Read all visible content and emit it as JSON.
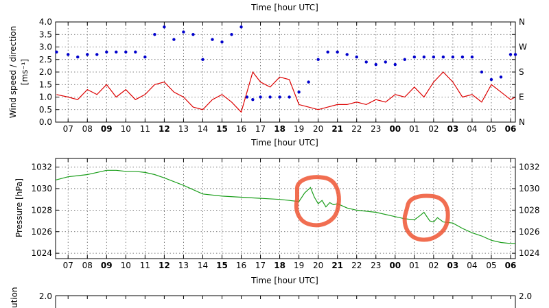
{
  "chart_data": [
    {
      "type": "line",
      "title": "",
      "xlabel_top": "Time [hour UTC]",
      "xlabel": "Time [hour UTC]",
      "ylabel": "Wind speed / direction [ms⁻¹]",
      "ylabel_line1": "Wind speed / direction",
      "ylabel_line2": "[ms⁻¹]",
      "ylim": [
        0.0,
        4.0
      ],
      "yticks": [
        "0.0",
        "0.5",
        "1.0",
        "1.5",
        "2.0",
        "2.5",
        "3.0",
        "3.5",
        "4.0"
      ],
      "y2ticks": [
        "N",
        "E",
        "S",
        "W",
        "N"
      ],
      "x_hour_start": 6.35,
      "x_hour_end": 30.25,
      "xticks": [
        "07",
        "08",
        "09",
        "10",
        "11",
        "12",
        "13",
        "14",
        "15",
        "16",
        "17",
        "18",
        "19",
        "20",
        "21",
        "22",
        "23",
        "00",
        "01",
        "02",
        "03",
        "04",
        "05",
        "06"
      ],
      "bold_xticks": [
        "09",
        "12",
        "15",
        "18",
        "21",
        "00",
        "03",
        "06"
      ],
      "series": [
        {
          "name": "Wind speed",
          "color": "#dd0000",
          "style": "line",
          "x": [
            6.4,
            7.0,
            7.5,
            8.0,
            8.5,
            9.0,
            9.5,
            10.0,
            10.5,
            11.0,
            11.5,
            12.0,
            12.5,
            13.0,
            13.5,
            14.0,
            14.5,
            15.0,
            15.5,
            16.0,
            16.3,
            16.6,
            17.0,
            17.5,
            18.0,
            18.5,
            19.0,
            19.5,
            20.0,
            20.5,
            21.0,
            21.5,
            22.0,
            22.5,
            23.0,
            23.5,
            24.0,
            24.5,
            25.0,
            25.5,
            26.0,
            26.5,
            27.0,
            27.5,
            28.0,
            28.5,
            29.0,
            29.5,
            30.0,
            30.25
          ],
          "y": [
            1.1,
            1.0,
            0.9,
            1.3,
            1.1,
            1.5,
            1.0,
            1.3,
            0.9,
            1.1,
            1.5,
            1.6,
            1.2,
            1.0,
            0.6,
            0.5,
            0.9,
            1.1,
            0.8,
            0.4,
            1.2,
            2.0,
            1.6,
            1.4,
            1.8,
            1.7,
            0.7,
            0.6,
            0.5,
            0.6,
            0.7,
            0.7,
            0.8,
            0.7,
            0.9,
            0.8,
            1.1,
            1.0,
            1.4,
            1.0,
            1.6,
            2.0,
            1.6,
            1.0,
            1.1,
            0.8,
            1.5,
            1.2,
            0.9,
            1.0
          ]
        },
        {
          "name": "Wind direction",
          "color": "#0000cc",
          "style": "dots",
          "x": [
            6.4,
            7.0,
            7.5,
            8.0,
            8.5,
            9.0,
            9.5,
            10.0,
            10.5,
            11.0,
            11.5,
            12.0,
            12.5,
            13.0,
            13.5,
            14.0,
            14.5,
            15.0,
            15.5,
            16.0,
            16.3,
            16.6,
            17.0,
            17.5,
            18.0,
            18.5,
            19.0,
            19.5,
            20.0,
            20.5,
            21.0,
            21.5,
            22.0,
            22.5,
            23.0,
            23.5,
            24.0,
            24.5,
            25.0,
            25.5,
            26.0,
            26.5,
            27.0,
            27.5,
            28.0,
            28.5,
            29.0,
            29.5,
            30.0,
            30.25
          ],
          "y": [
            2.8,
            2.7,
            2.6,
            2.7,
            2.7,
            2.8,
            2.8,
            2.8,
            2.8,
            2.6,
            3.5,
            3.8,
            3.3,
            3.6,
            3.5,
            2.5,
            3.3,
            3.2,
            3.5,
            3.8,
            1.0,
            0.9,
            1.0,
            1.0,
            1.0,
            1.0,
            1.2,
            1.6,
            2.5,
            2.8,
            2.8,
            2.7,
            2.6,
            2.4,
            2.3,
            2.4,
            2.3,
            2.5,
            2.6,
            2.6,
            2.6,
            2.6,
            2.6,
            2.6,
            2.6,
            2.0,
            1.7,
            1.8,
            2.7,
            2.7
          ]
        }
      ]
    },
    {
      "type": "line",
      "title": "",
      "xlabel": "Time [hour UTC]",
      "ylabel": "Pressure [hPa]",
      "ylim": [
        1023.5,
        1032.8
      ],
      "yticks": [
        "1024",
        "1026",
        "1028",
        "1030",
        "1032"
      ],
      "y2ticks": [
        "1024",
        "1026",
        "1028",
        "1030",
        "1032"
      ],
      "xticks": [
        "07",
        "08",
        "09",
        "10",
        "11",
        "12",
        "13",
        "14",
        "15",
        "16",
        "17",
        "18",
        "19",
        "20",
        "21",
        "22",
        "23",
        "00",
        "01",
        "02",
        "03",
        "04",
        "05",
        "06"
      ],
      "bold_xticks": [
        "09",
        "12",
        "15",
        "18",
        "21",
        "00",
        "03",
        "06"
      ],
      "annotations": [
        "hand-drawn circle near 19:00-21:00 UTC",
        "hand-drawn circle near 01:00-02:30 UTC"
      ],
      "series": [
        {
          "name": "Pressure",
          "color": "#1a9e1a",
          "x": [
            6.35,
            7.0,
            7.5,
            8.0,
            8.5,
            9.0,
            9.5,
            10.0,
            10.5,
            11.0,
            11.5,
            12.0,
            13.0,
            14.0,
            15.0,
            16.0,
            17.0,
            18.0,
            18.5,
            19.0,
            19.3,
            19.6,
            19.8,
            20.0,
            20.2,
            20.4,
            20.6,
            20.8,
            21.0,
            21.5,
            22.0,
            23.0,
            24.0,
            24.5,
            25.0,
            25.3,
            25.5,
            25.8,
            26.0,
            26.2,
            26.5,
            27.0,
            27.5,
            28.0,
            28.5,
            29.0,
            29.5,
            30.0,
            30.25
          ],
          "y": [
            1030.8,
            1031.1,
            1031.2,
            1031.3,
            1031.5,
            1031.7,
            1031.7,
            1031.6,
            1031.6,
            1031.5,
            1031.3,
            1031.0,
            1030.3,
            1029.5,
            1029.3,
            1029.2,
            1029.1,
            1029.0,
            1028.9,
            1028.8,
            1029.6,
            1030.1,
            1029.2,
            1028.6,
            1028.9,
            1028.3,
            1028.7,
            1028.5,
            1028.6,
            1028.2,
            1028.0,
            1027.8,
            1027.4,
            1027.2,
            1027.1,
            1027.5,
            1027.8,
            1027.0,
            1026.9,
            1027.3,
            1026.9,
            1026.8,
            1026.3,
            1025.9,
            1025.6,
            1025.2,
            1025.0,
            1024.9,
            1024.9
          ]
        }
      ]
    },
    {
      "type": "line",
      "partial": true,
      "ylabel_fragment": "ution",
      "yticks": [
        "2.0"
      ],
      "y2ticks": [
        "2.0"
      ]
    }
  ]
}
